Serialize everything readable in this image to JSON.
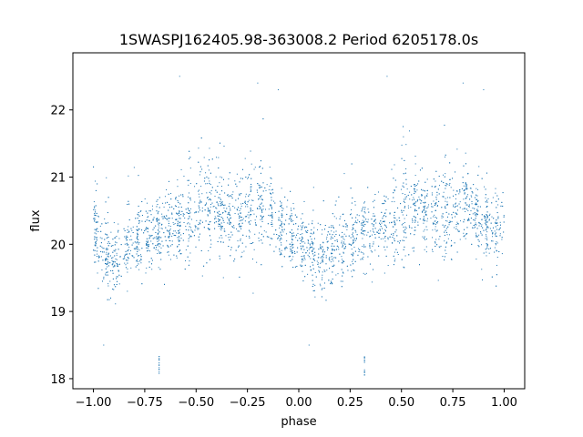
{
  "chart_data": {
    "type": "scatter",
    "title": "1SWASPJ162405.98-363008.2 Period 6205178.0s",
    "xlabel": "phase",
    "ylabel": "flux",
    "xlim": [
      -1.1,
      1.1
    ],
    "ylim": [
      17.85,
      22.85
    ],
    "xticks": [
      -1.0,
      -0.75,
      -0.5,
      -0.25,
      0.0,
      0.25,
      0.5,
      0.75,
      1.0
    ],
    "xtick_labels": [
      "−1.00",
      "−0.75",
      "−0.50",
      "−0.25",
      "0.00",
      "0.25",
      "0.50",
      "0.75",
      "1.00"
    ],
    "yticks": [
      18,
      19,
      20,
      21,
      22
    ],
    "ytick_labels": [
      "18",
      "19",
      "20",
      "21",
      "22"
    ],
    "grid": false,
    "marker_color": "#1f77b4",
    "series": [
      {
        "x": [
          -1.0,
          -0.98,
          -0.95,
          -0.9,
          -0.85,
          -0.8,
          -0.75,
          -0.7,
          -0.65,
          -0.6,
          -0.55,
          -0.5,
          -0.45,
          -0.4,
          -0.35,
          -0.3,
          -0.25,
          -0.2,
          -0.15,
          -0.1,
          -0.05,
          0.0,
          0.02,
          0.05,
          0.1,
          0.15,
          0.2,
          0.25,
          0.3,
          0.35,
          0.4,
          0.45,
          0.5,
          0.55,
          0.6,
          0.65,
          0.7,
          0.75,
          0.8,
          0.85,
          0.9,
          0.95,
          1.0
        ],
        "y": [
          20.3,
          20.1,
          19.9,
          19.8,
          19.9,
          20.0,
          20.1,
          20.2,
          20.2,
          20.3,
          20.3,
          20.4,
          20.6,
          20.5,
          20.4,
          20.4,
          20.5,
          20.6,
          20.5,
          20.3,
          20.2,
          20.1,
          20.0,
          19.9,
          19.8,
          19.9,
          20.0,
          20.1,
          20.2,
          20.2,
          20.3,
          20.3,
          20.4,
          20.6,
          20.5,
          20.4,
          20.4,
          20.5,
          20.6,
          20.5,
          20.3,
          20.2,
          20.3
        ]
      }
    ],
    "envelope_min": [
      19.6,
      19.5,
      19.3,
      19.4,
      19.5,
      19.5,
      19.6,
      19.6,
      19.5,
      19.5,
      19.4,
      19.6,
      19.9,
      19.8,
      19.7,
      19.7,
      19.8,
      19.9,
      19.8,
      19.6,
      19.5,
      19.4,
      19.3,
      19.4,
      19.4,
      19.5,
      19.5,
      19.6,
      19.6,
      19.5,
      19.5,
      19.4,
      19.6,
      19.9,
      19.8,
      19.7,
      19.7,
      19.8,
      19.9,
      19.8,
      19.6,
      19.5,
      19.6
    ],
    "envelope_max": [
      21.0,
      20.9,
      20.8,
      20.7,
      20.9,
      21.0,
      21.0,
      21.0,
      21.0,
      21.0,
      21.1,
      21.3,
      21.7,
      21.4,
      21.2,
      21.3,
      21.5,
      21.7,
      21.4,
      21.1,
      21.0,
      20.9,
      20.8,
      20.7,
      20.9,
      21.0,
      21.0,
      21.0,
      21.0,
      21.0,
      21.1,
      21.3,
      21.7,
      21.4,
      21.2,
      21.3,
      21.5,
      21.7,
      21.4,
      21.1,
      21.0,
      20.9,
      21.0
    ],
    "outliers": [
      {
        "x": -0.68,
        "y": 18.1
      },
      {
        "x": -0.68,
        "y": 18.3
      },
      {
        "x": 0.32,
        "y": 18.1
      },
      {
        "x": 0.32,
        "y": 18.3
      },
      {
        "x": -0.2,
        "y": 22.4
      },
      {
        "x": 0.8,
        "y": 22.4
      },
      {
        "x": -0.58,
        "y": 22.5
      },
      {
        "x": 0.43,
        "y": 22.5
      },
      {
        "x": -0.95,
        "y": 18.5
      },
      {
        "x": 0.05,
        "y": 18.5
      },
      {
        "x": -0.1,
        "y": 22.3
      },
      {
        "x": 0.9,
        "y": 22.3
      }
    ]
  }
}
